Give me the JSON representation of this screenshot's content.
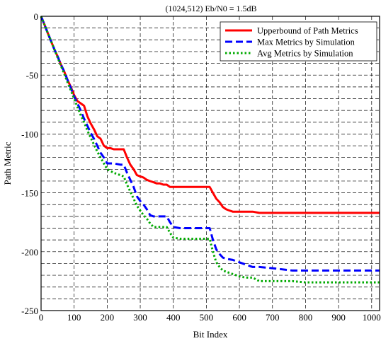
{
  "chart_data": {
    "type": "line",
    "title": "(1024,512)  Eb/N0 = 1.5dB",
    "xlabel": "Bit Index",
    "ylabel": "Path Metric",
    "xlim": [
      0,
      1024
    ],
    "ylim": [
      -250,
      0
    ],
    "xticks": [
      0,
      100,
      200,
      300,
      400,
      500,
      600,
      700,
      800,
      900,
      1000
    ],
    "yticks": [
      0,
      -50,
      -100,
      -150,
      -200,
      -250
    ],
    "xtick_labels": [
      "0",
      "100",
      "200",
      "300",
      "400",
      "500",
      "600",
      "700",
      "800",
      "900",
      "1000"
    ],
    "ytick_labels": [
      "0",
      "-50",
      "-100",
      "-150",
      "-200",
      "-250"
    ],
    "grid": true,
    "grid_style": "dashed",
    "legend_position": "top-right",
    "series": [
      {
        "name": "Upperbound of Path Metrics",
        "color": "#ff0000",
        "dash": "solid",
        "x": [
          0,
          10,
          20,
          30,
          40,
          50,
          60,
          70,
          80,
          90,
          100,
          110,
          120,
          130,
          140,
          150,
          160,
          170,
          180,
          190,
          200,
          210,
          220,
          230,
          240,
          250,
          260,
          270,
          280,
          290,
          300,
          310,
          320,
          330,
          340,
          350,
          360,
          370,
          380,
          390,
          400,
          420,
          440,
          460,
          480,
          500,
          510,
          520,
          530,
          540,
          550,
          560,
          570,
          580,
          590,
          600,
          620,
          640,
          660,
          700,
          760,
          800,
          900,
          1024
        ],
        "y": [
          0,
          -7,
          -14,
          -21,
          -28,
          -34,
          -41,
          -47,
          -54,
          -60,
          -67,
          -72,
          -74,
          -76,
          -85,
          -91,
          -96,
          -102,
          -104,
          -110,
          -112,
          -112,
          -113,
          -113,
          -113,
          -113,
          -120,
          -126,
          -130,
          -135,
          -136,
          -137,
          -139,
          -140,
          -141,
          -142,
          -142,
          -143,
          -143,
          -145,
          -145,
          -145,
          -145,
          -145,
          -145,
          -145,
          -145,
          -150,
          -155,
          -158,
          -162,
          -164,
          -165,
          -166,
          -166,
          -166,
          -166,
          -166,
          -167,
          -167,
          -167,
          -167,
          -167,
          -167
        ]
      },
      {
        "name": "Max Metrics by Simulation",
        "color": "#0000ff",
        "dash": "dashed",
        "x": [
          0,
          10,
          20,
          30,
          40,
          50,
          60,
          70,
          80,
          90,
          100,
          110,
          120,
          130,
          140,
          150,
          160,
          170,
          180,
          190,
          200,
          220,
          240,
          250,
          260,
          270,
          280,
          290,
          300,
          310,
          320,
          330,
          340,
          360,
          380,
          390,
          400,
          420,
          450,
          480,
          500,
          510,
          520,
          530,
          540,
          550,
          560,
          580,
          600,
          620,
          640,
          660,
          700,
          760,
          800,
          900,
          1024
        ],
        "y": [
          0,
          -7,
          -14,
          -21,
          -28,
          -34,
          -41,
          -47,
          -54,
          -61,
          -68,
          -74,
          -80,
          -87,
          -93,
          -99,
          -104,
          -110,
          -116,
          -120,
          -125,
          -125,
          -126,
          -126,
          -133,
          -139,
          -145,
          -153,
          -157,
          -160,
          -164,
          -169,
          -170,
          -170,
          -170,
          -175,
          -179,
          -180,
          -180,
          -180,
          -180,
          -180,
          -190,
          -198,
          -202,
          -205,
          -206,
          -207,
          -209,
          -211,
          -213,
          -213,
          -214,
          -216,
          -216,
          -216,
          -216
        ]
      },
      {
        "name": "Avg Metrics by Simulation",
        "color": "#00aa00",
        "dash": "dotted",
        "x": [
          0,
          10,
          20,
          30,
          40,
          50,
          60,
          70,
          80,
          90,
          100,
          110,
          120,
          130,
          140,
          150,
          160,
          170,
          180,
          190,
          200,
          220,
          240,
          250,
          260,
          270,
          280,
          290,
          300,
          310,
          320,
          330,
          340,
          360,
          380,
          390,
          400,
          420,
          450,
          480,
          500,
          510,
          520,
          530,
          540,
          550,
          560,
          580,
          600,
          620,
          640,
          660,
          700,
          760,
          800,
          900,
          1024
        ],
        "y": [
          0,
          -7,
          -14,
          -21,
          -28,
          -35,
          -42,
          -49,
          -56,
          -63,
          -70,
          -77,
          -84,
          -90,
          -97,
          -103,
          -109,
          -115,
          -120,
          -125,
          -130,
          -133,
          -135,
          -136,
          -143,
          -149,
          -155,
          -161,
          -165,
          -169,
          -172,
          -176,
          -179,
          -179,
          -179,
          -184,
          -188,
          -189,
          -189,
          -189,
          -189,
          -189,
          -200,
          -209,
          -213,
          -216,
          -217,
          -219,
          -221,
          -222,
          -222,
          -225,
          -225,
          -225,
          -226,
          -226,
          -226
        ]
      }
    ]
  }
}
